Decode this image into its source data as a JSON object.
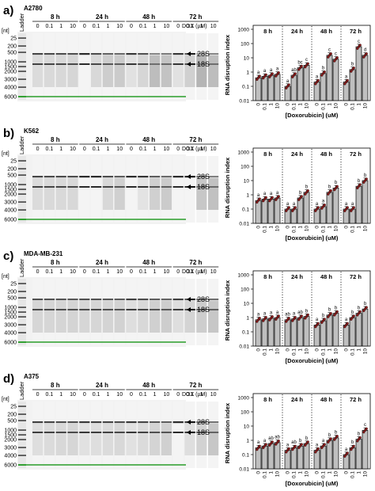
{
  "figure": {
    "hours": [
      "8 h",
      "24 h",
      "48 h",
      "72 h"
    ],
    "dox_labels": [
      "0",
      "0.1",
      "1",
      "10"
    ],
    "dox_axis_label": "DOX (µM)",
    "ladder_label": "Ladder",
    "nt_label": "[nt]",
    "ladder_ticks": [
      "6000",
      "4000",
      "3000",
      "2000",
      "1500",
      "1000",
      "500",
      "200",
      "25"
    ],
    "band_28S": "28S",
    "band_18S": "18S",
    "y_axis_label": "RNA disruption index",
    "x_axis_label": "[Doxorubicin] (uM)",
    "y_ticks": [
      "1000",
      "100",
      "10",
      "1",
      "0.1",
      "0.01"
    ],
    "bar_color": "#bfbfbf",
    "dot_color": "#8b1a1a",
    "marker_color": "#2a9d2a"
  },
  "chart_data": [
    {
      "type": "bar",
      "panel_label": "a)",
      "cell_line": "A2780",
      "x_groups": [
        "8 h",
        "24 h",
        "48 h",
        "72 h"
      ],
      "categories": [
        "0",
        "0.1",
        "1",
        "10"
      ],
      "y_scale": "log",
      "ylim": [
        0.01,
        1000
      ],
      "ylabel": "RNA disruption index",
      "xlabel": "[Doxorubicin] (uM)",
      "series": [
        {
          "group": "8 h",
          "values": [
            0.4,
            0.5,
            0.6,
            0.7
          ],
          "letters": [
            "a",
            "a",
            "a",
            "a"
          ]
        },
        {
          "group": "24 h",
          "values": [
            0.1,
            0.6,
            2,
            3
          ],
          "letters": [
            "a",
            "ab",
            "bc",
            "c"
          ]
        },
        {
          "group": "48 h",
          "values": [
            0.2,
            0.8,
            15,
            8
          ],
          "letters": [
            "a",
            "b",
            "c",
            "c"
          ]
        },
        {
          "group": "72 h",
          "values": [
            0.2,
            1.5,
            60,
            15
          ],
          "letters": [
            "a",
            "b",
            "c",
            "d"
          ]
        }
      ]
    },
    {
      "type": "bar",
      "panel_label": "b)",
      "cell_line": "K562",
      "x_groups": [
        "8 h",
        "24 h",
        "48 h",
        "72 h"
      ],
      "categories": [
        "0",
        "0.1",
        "1",
        "10"
      ],
      "y_scale": "log",
      "ylim": [
        0.01,
        1000
      ],
      "ylabel": "RNA disruption index",
      "xlabel": "[Doxorubicin] (uM)",
      "series": [
        {
          "group": "8 h",
          "values": [
            0.4,
            0.5,
            0.5,
            0.6
          ],
          "letters": [
            "a",
            "a",
            "a",
            "a"
          ]
        },
        {
          "group": "24 h",
          "values": [
            0.1,
            0.1,
            0.6,
            1.5
          ],
          "letters": [
            "a",
            "a",
            "b",
            "b"
          ]
        },
        {
          "group": "48 h",
          "values": [
            0.1,
            0.15,
            1.5,
            3
          ],
          "letters": [
            "a",
            "a",
            "b",
            "b"
          ]
        },
        {
          "group": "72 h",
          "values": [
            0.1,
            0.1,
            4,
            10
          ],
          "letters": [
            "a",
            "a",
            "b",
            "b"
          ]
        }
      ]
    },
    {
      "type": "bar",
      "panel_label": "c)",
      "cell_line": "MDA-MB-231",
      "x_groups": [
        "8 h",
        "24 h",
        "48 h",
        "72 h"
      ],
      "categories": [
        "0",
        "0.1",
        "1",
        "10"
      ],
      "y_scale": "log",
      "ylim": [
        0.01,
        1000
      ],
      "ylabel": "RNA disruption index",
      "xlabel": "[Doxorubicin] (uM)",
      "series": [
        {
          "group": "8 h",
          "values": [
            0.7,
            0.8,
            0.9,
            1
          ],
          "letters": [
            "a",
            "a",
            "a",
            "a"
          ]
        },
        {
          "group": "24 h",
          "values": [
            0.7,
            0.8,
            1,
            1.2
          ],
          "letters": [
            "ab",
            "a",
            "ab",
            "b"
          ]
        },
        {
          "group": "48 h",
          "values": [
            0.3,
            0.6,
            1.5,
            2
          ],
          "letters": [
            "a",
            "b",
            "b",
            "b"
          ]
        },
        {
          "group": "72 h",
          "values": [
            0.3,
            1,
            2,
            4
          ],
          "letters": [
            "a",
            "b",
            "b",
            "b"
          ]
        }
      ]
    },
    {
      "type": "bar",
      "panel_label": "d)",
      "cell_line": "A375",
      "x_groups": [
        "8 h",
        "24 h",
        "48 h",
        "72 h"
      ],
      "categories": [
        "0",
        "0.1",
        "1",
        "10"
      ],
      "y_scale": "log",
      "ylim": [
        0.01,
        1000
      ],
      "ylabel": "RNA disruption index",
      "xlabel": "[Doxorubicin] (uM)",
      "series": [
        {
          "group": "8 h",
          "values": [
            0.3,
            0.4,
            0.6,
            0.7
          ],
          "letters": [
            "a",
            "a",
            "ab",
            "ab"
          ]
        },
        {
          "group": "24 h",
          "values": [
            0.2,
            0.3,
            0.4,
            0.6
          ],
          "letters": [
            "a",
            "ab",
            "b",
            "b"
          ]
        },
        {
          "group": "48 h",
          "values": [
            0.2,
            0.4,
            1,
            1.5
          ],
          "letters": [
            "a",
            "a",
            "b",
            "b"
          ]
        },
        {
          "group": "72 h",
          "values": [
            0.1,
            0.3,
            1.2,
            5
          ],
          "letters": [
            "a",
            "b",
            "b",
            "c"
          ]
        }
      ]
    }
  ]
}
